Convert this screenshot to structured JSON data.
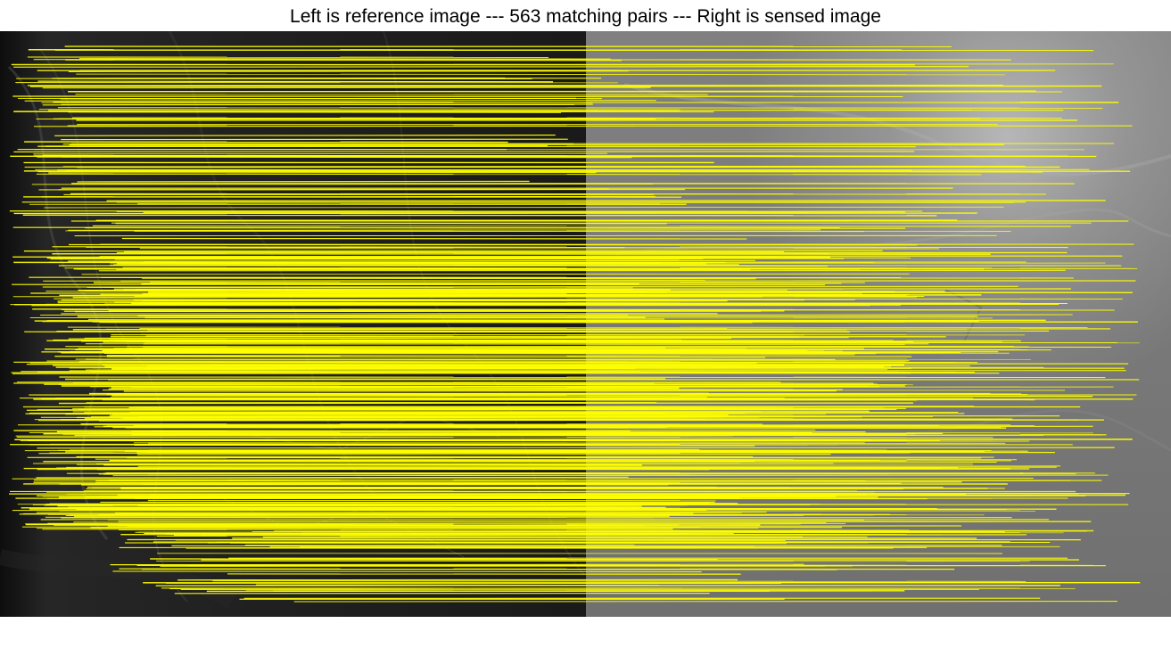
{
  "figure": {
    "title": "Left is reference image --- 563 matching pairs --- Right is sensed image"
  },
  "image_pair": {
    "left_role": "reference image",
    "right_role": "sensed image",
    "matching_pairs": 563,
    "match_line_color": "#ffff00",
    "left_tone": "dark grayscale optical imagery with terraces and roads",
    "right_tone": "smooth light-gray elevation-like imagery"
  }
}
